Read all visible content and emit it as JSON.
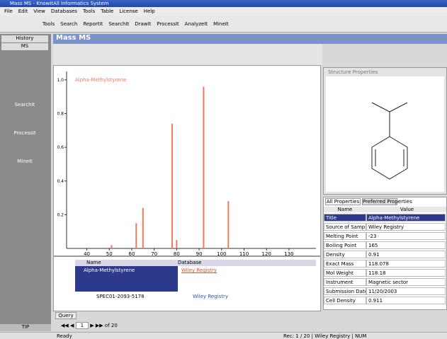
{
  "window": {
    "title": "Mass MS - KnowItAll Informatics System"
  },
  "menu": [
    "File",
    "Edit",
    "View",
    "Databases",
    "Tools",
    "Table",
    "License",
    "Help"
  ],
  "toolbar": [
    "Tools",
    "Search",
    "ReportIt",
    "SearchIt",
    "DrawIt",
    "ProcessIt",
    "AnalyzeIt",
    "MineIt"
  ],
  "sidebar": {
    "items": [
      "History",
      "MS",
      "SearchIt",
      "ProcessIt",
      "MineIt"
    ],
    "footer": "TIP"
  },
  "panel": {
    "title": "Mass MS"
  },
  "spectrum": {
    "type": "bar",
    "caption": "Alpha-Methylstyrene",
    "x": [
      51,
      62,
      65,
      78,
      80,
      92,
      103
    ],
    "values": [
      0.02,
      0.15,
      0.24,
      0.74,
      0.05,
      0.96,
      0.28
    ],
    "xlim": [
      31,
      142
    ],
    "xticks": [
      40,
      50,
      60,
      70,
      80,
      90,
      100,
      110,
      120,
      130
    ],
    "ylim": [
      0,
      1.05
    ],
    "yticks": [
      {
        "value": 0.2,
        "label": "0.2"
      },
      {
        "value": 0.4,
        "label": "0.4"
      },
      {
        "value": 0.6,
        "label": "0.6"
      },
      {
        "value": 0.8,
        "label": "0.8"
      },
      {
        "value": 1,
        "label": "1.0"
      }
    ],
    "color": "#ef7a5a"
  },
  "results": {
    "headers": [
      "Name",
      "Database"
    ],
    "rows": [
      [
        "Alpha-Methylstyrene",
        "Wiley Registry"
      ],
      [
        "SPEC01-2093-5178",
        "Wiley Registry"
      ]
    ],
    "tab": "Query"
  },
  "nav": {
    "record": "1",
    "of": "of 20"
  },
  "structure": {
    "title": "Structure Properties"
  },
  "properties": {
    "tabs": [
      "All Properties",
      "Preferred Properties"
    ],
    "headers": [
      "Name",
      "Value"
    ],
    "rows": [
      [
        "Title",
        "Alpha-Methylstyrene"
      ],
      [
        "Source of Sample",
        "Wiley Registry"
      ],
      [
        "Melting Point",
        "-23"
      ],
      [
        "Boiling Point",
        "165"
      ],
      [
        "Density",
        "0.91"
      ],
      [
        "Exact Mass",
        "118.078"
      ],
      [
        "Mol Weight",
        "118.18"
      ],
      [
        "Instrument",
        "Magnetic sector"
      ],
      [
        "Submission Date",
        "11/20/2003"
      ],
      [
        "Cell Density",
        "0.911"
      ]
    ]
  },
  "status": {
    "left": "Ready",
    "right": "Rec: 1 / 20 | Wiley Registry | NUM"
  }
}
